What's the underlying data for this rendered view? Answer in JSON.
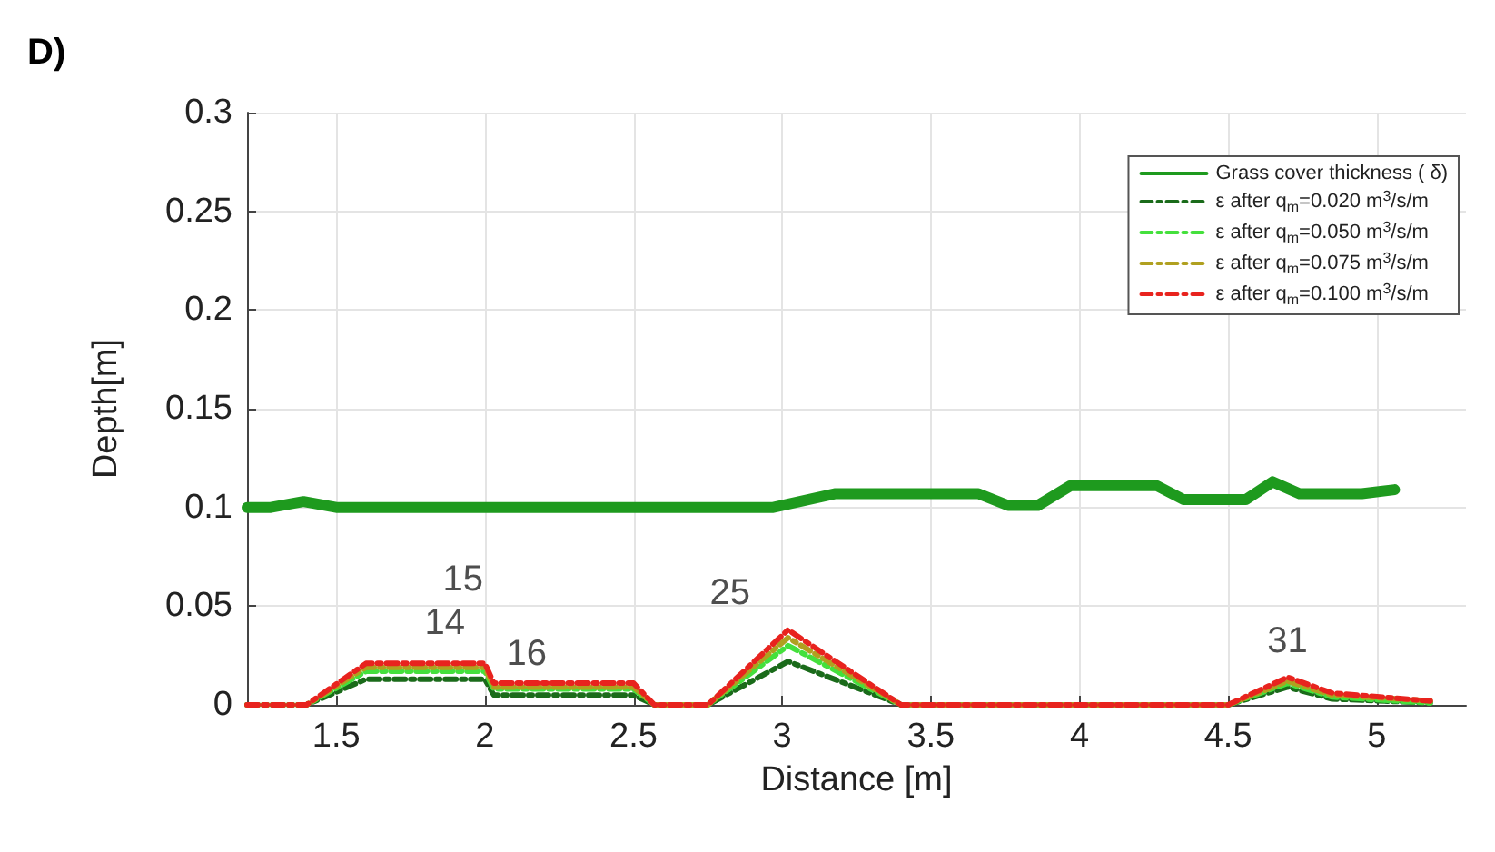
{
  "chart_data": {
    "type": "line",
    "title": "D)",
    "xlabel": "Distance [m]",
    "ylabel": "Depth[m]",
    "xlim": [
      1.2,
      5.3
    ],
    "xticks": [
      1.5,
      2,
      2.5,
      3,
      3.5,
      4,
      4.5,
      5
    ],
    "ylim": [
      0,
      0.3
    ],
    "yticks": [
      0,
      0.05,
      0.1,
      0.15,
      0.2,
      0.25,
      0.3
    ],
    "grid": true,
    "legend": "top right",
    "marker": "none",
    "series": [
      {
        "name": "Grass cover thickness ( δ)",
        "color": "#1e9a1e",
        "line_style": "solid",
        "x": [
          1.2,
          1.28,
          1.39,
          1.5,
          2.97,
          3.18,
          3.66,
          3.76,
          3.86,
          3.97,
          4.26,
          4.35,
          4.56,
          4.65,
          4.74,
          4.95,
          5.06
        ],
        "values": [
          0.1,
          0.1,
          0.103,
          0.1,
          0.1,
          0.107,
          0.107,
          0.101,
          0.101,
          0.111,
          0.111,
          0.104,
          0.104,
          0.113,
          0.107,
          0.107,
          0.109
        ]
      },
      {
        "name": "ε after q$_{m}$=0.020 m$^{3}$/s/m",
        "color": "#1a6b1a",
        "line_style": "dashed",
        "x": [
          1.2,
          1.4,
          1.6,
          2.0,
          2.03,
          2.5,
          2.57,
          2.75,
          3.02,
          3.4,
          4.5,
          4.7,
          4.85,
          5.18
        ],
        "values": [
          0,
          0,
          0.013,
          0.013,
          0.005,
          0.005,
          0,
          0,
          0.022,
          0,
          0,
          0.009,
          0.003,
          0.001
        ]
      },
      {
        "name": "ε after q$_{m}$=0.050 m$^{3}$/s/m",
        "color": "#44e03c",
        "line_style": "dashed",
        "x": [
          1.2,
          1.4,
          1.6,
          2.0,
          2.03,
          2.5,
          2.57,
          2.75,
          3.02,
          3.4,
          4.5,
          4.7,
          4.85,
          5.18
        ],
        "values": [
          0,
          0,
          0.017,
          0.017,
          0.008,
          0.008,
          0,
          0,
          0.03,
          0,
          0,
          0.011,
          0.004,
          0.001
        ]
      },
      {
        "name": "ε after q$_{m}$=0.075 m$^{3}$/s/m",
        "color": "#b0a020",
        "line_style": "dashed",
        "x": [
          1.2,
          1.4,
          1.6,
          2.0,
          2.03,
          2.5,
          2.57,
          2.75,
          3.02,
          3.4,
          4.5,
          4.7,
          4.85,
          5.18
        ],
        "values": [
          0,
          0,
          0.019,
          0.019,
          0.009,
          0.009,
          0,
          0,
          0.034,
          0,
          0,
          0.012,
          0.005,
          0.002
        ]
      },
      {
        "name": "ε after q$_{m}$=0.100 m$^{3}$/s/m",
        "color": "#e8231e",
        "line_style": "dashed",
        "x": [
          1.2,
          1.4,
          1.6,
          2.0,
          2.03,
          2.5,
          2.57,
          2.75,
          3.02,
          3.4,
          4.5,
          4.7,
          4.85,
          5.18
        ],
        "values": [
          0,
          0,
          0.021,
          0.021,
          0.011,
          0.011,
          0,
          0,
          0.038,
          0,
          0,
          0.014,
          0.006,
          0.002
        ]
      }
    ],
    "annotations": [
      {
        "text": "15",
        "x": 2.0,
        "y": 0.021
      },
      {
        "text": "14",
        "x": 2.0,
        "y": 0.021
      },
      {
        "text": "16",
        "x": 2.03,
        "y": 0.011
      },
      {
        "text": "25",
        "x": 3.02,
        "y": 0.038
      },
      {
        "text": "31",
        "x": 4.7,
        "y": 0.014
      }
    ]
  }
}
